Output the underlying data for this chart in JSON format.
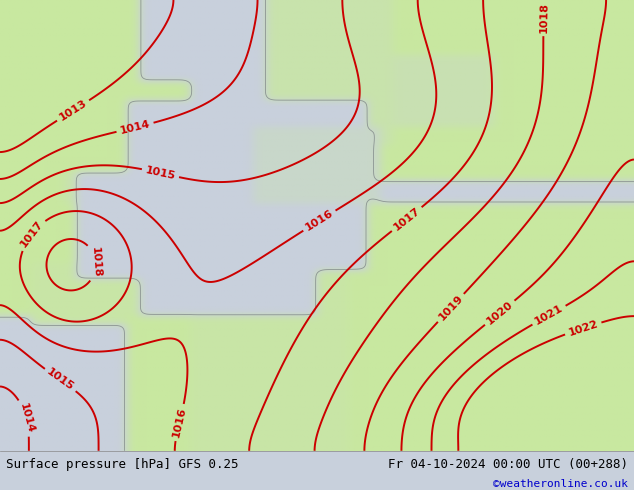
{
  "title_left": "Surface pressure [hPa] GFS 0.25",
  "title_right": "Fr 04-10-2024 00:00 UTC (00+288)",
  "watermark": "©weatheronline.co.uk",
  "sea_color": "#c8d0dc",
  "land_color": "#c8e8a0",
  "contour_color": "#cc0000",
  "contour_linewidth": 1.4,
  "footer_bg": "#c8d0dc",
  "footer_text_color": "#000000",
  "watermark_color": "#0000cc",
  "font_size_footer": 9,
  "font_size_contour": 8,
  "contour_levels": [
    1013,
    1014,
    1015,
    1016,
    1017,
    1018,
    1019,
    1020,
    1021,
    1022
  ],
  "figsize": [
    6.34,
    4.9
  ],
  "dpi": 100
}
